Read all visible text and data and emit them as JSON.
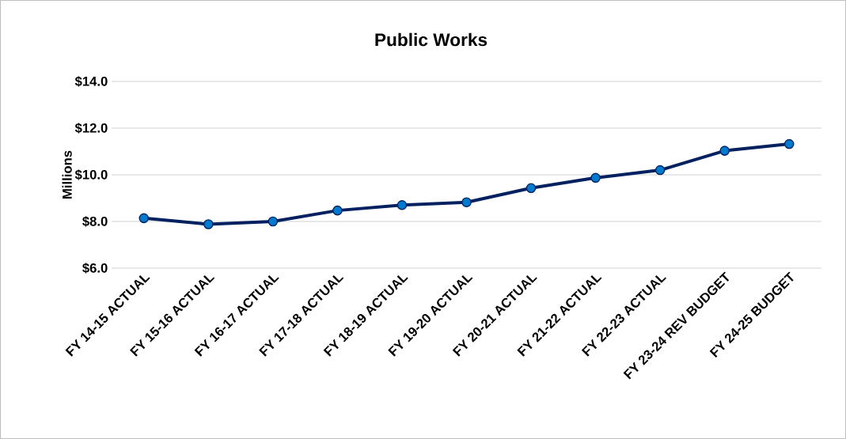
{
  "chart_data": {
    "type": "line",
    "title": "Public Works",
    "ylabel": "Millions",
    "categories": [
      "FY 14-15 ACTUAL",
      "FY 15-16 ACTUAL",
      "FY 16-17 ACTUAL",
      "FY 17-18 ACTUAL",
      "FY 18-19 ACTUAL",
      "FY 19-20 ACTUAL",
      "FY 20-21 ACTUAL",
      "FY 21-22 ACTUAL",
      "FY 22-23 ACTUAL",
      "FY 23-24 REV BUDGET",
      "FY 24-25 BUDGET"
    ],
    "series": [
      {
        "color": "#002060",
        "values": [
          8.14,
          7.88,
          8.0,
          8.47,
          8.7,
          8.82,
          9.43,
          9.87,
          10.2,
          11.03,
          11.32
        ]
      }
    ],
    "ylim": [
      6,
      14
    ],
    "yticks": [
      {
        "value": 6,
        "label": "$6.0"
      },
      {
        "value": 8,
        "label": "$8.0"
      },
      {
        "value": 10,
        "label": "$10.0"
      },
      {
        "value": 12,
        "label": "$12.0"
      },
      {
        "value": 14,
        "label": "$14.0"
      }
    ],
    "grid": "y",
    "marker": "circle",
    "line_style": "solid"
  }
}
